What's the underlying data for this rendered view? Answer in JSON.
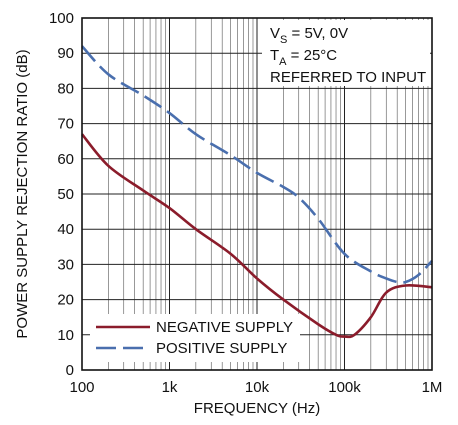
{
  "chart_data": {
    "type": "line",
    "title": "",
    "xlabel": "FREQUENCY (Hz)",
    "ylabel": "POWER SUPPLY REJECTION RATIO (dB)",
    "xscale": "log",
    "xlim": [
      100,
      1000000
    ],
    "ylim": [
      0,
      100
    ],
    "x_ticks": [
      100,
      1000,
      10000,
      100000,
      1000000
    ],
    "x_tick_labels": [
      "100",
      "1k",
      "10k",
      "100k",
      "1M"
    ],
    "y_ticks": [
      0,
      10,
      20,
      30,
      40,
      50,
      60,
      70,
      80,
      90,
      100
    ],
    "y_tick_labels": [
      "0",
      "10",
      "20",
      "30",
      "40",
      "50",
      "60",
      "70",
      "80",
      "90",
      "100"
    ],
    "grid": true,
    "legend_position": "bottom-left",
    "annotations": [
      {
        "main": "V",
        "sub": "S",
        "rest": " = 5V, 0V"
      },
      {
        "main": "T",
        "sub": "A",
        "rest": " = 25°C"
      },
      {
        "main": "REFERRED TO INPUT",
        "sub": "",
        "rest": ""
      }
    ],
    "series": [
      {
        "name": "NEGATIVE SUPPLY",
        "color": "#8b1c2b",
        "style": "solid",
        "x": [
          100,
          200,
          500,
          1000,
          2000,
          5000,
          10000,
          20000,
          50000,
          80000,
          100000,
          130000,
          200000,
          300000,
          500000,
          1000000
        ],
        "y": [
          67,
          58,
          51,
          46,
          40,
          33,
          26,
          20,
          13,
          10,
          9.5,
          10,
          15,
          22,
          24,
          23.5
        ]
      },
      {
        "name": "POSITIVE SUPPLY",
        "color": "#4a6fae",
        "style": "dashed",
        "x": [
          100,
          200,
          500,
          1000,
          2000,
          5000,
          10000,
          20000,
          30000,
          50000,
          100000,
          200000,
          300000,
          400000,
          500000,
          700000,
          1000000
        ],
        "y": [
          92,
          84,
          78,
          73,
          67,
          61,
          56,
          52,
          49,
          43,
          33,
          28,
          26,
          25,
          25,
          27,
          31
        ]
      }
    ]
  }
}
